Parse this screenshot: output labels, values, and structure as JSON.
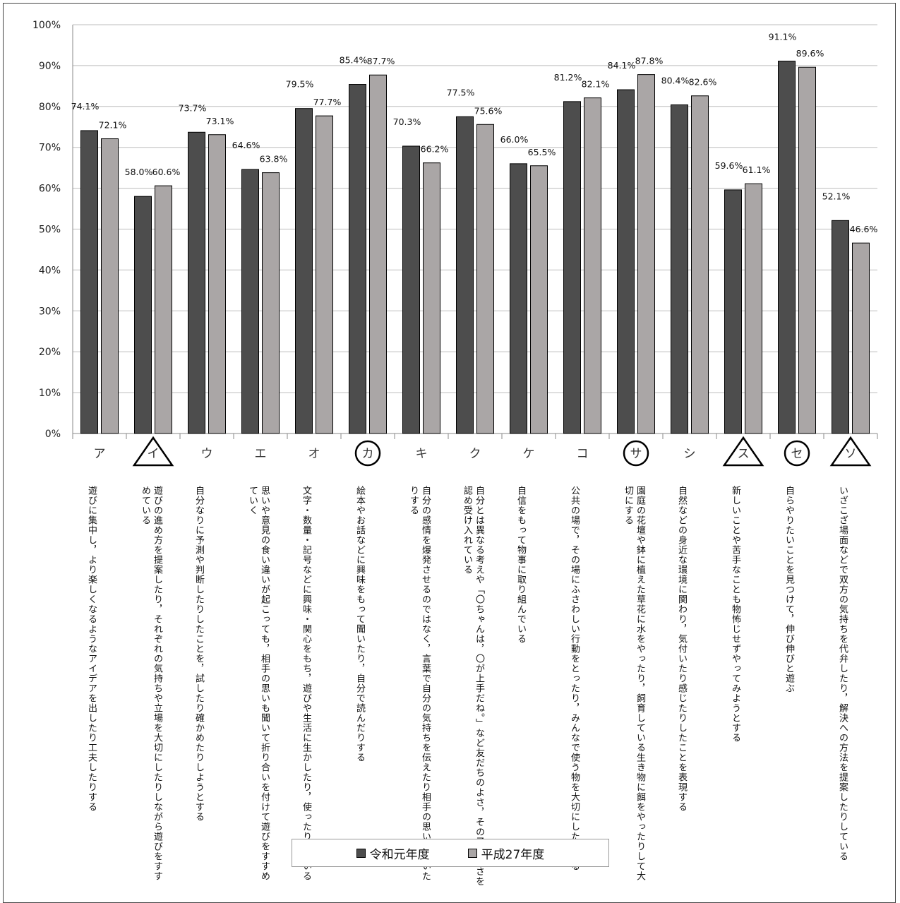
{
  "chart_data": {
    "type": "bar",
    "ylim": [
      0,
      100
    ],
    "yticks": [
      "0%",
      "10%",
      "20%",
      "30%",
      "40%",
      "50%",
      "60%",
      "70%",
      "80%",
      "90%",
      "100%"
    ],
    "categories": [
      "ア",
      "イ",
      "ウ",
      "エ",
      "オ",
      "カ",
      "キ",
      "ク",
      "ケ",
      "コ",
      "サ",
      "シ",
      "ス",
      "セ",
      "ソ"
    ],
    "category_marks": [
      "",
      "triangle",
      "",
      "",
      "",
      "circle",
      "",
      "",
      "",
      "",
      "circle",
      "",
      "triangle",
      "circle",
      "triangle"
    ],
    "descriptions": [
      "遊びに集中し，より楽しくなるようなアイデアを出したり工夫したりする",
      "遊びの進め方を提案したり，それぞれの気持ちや立場を大切にしたりしながら遊びをすすめている",
      "自分なりに予測や判断したりしたことを，試したり確かめたりしようとする",
      "思いや意見の食い違いが起こっても，相手の思いも聞いて折り合いを付けて遊びをすすめていく",
      "文字・数量・記号などに興味・関心をもち，遊びや生活に生かしたり，使ったりしている",
      "絵本やお話などに興味をもって聞いたり，自分で読んだりする",
      "自分の感情を爆発させるのではなく，言葉で自分の気持ちを伝えたり相手の思いを聞いたりする",
      "自分とは異なる考えや「〇ちゃんは，〇が上手だね。」など友だちのよさ，その子らしさを認め受け入れている",
      "自信をもって物事に取り組んでいる",
      "公共の場で，その場にふさわしい行動をとったり，みんなで使う物を大切にしたりする",
      "園庭の花壇や鉢に植えた草花に水をやったり，飼育している生き物に餌をやったりして大切にする",
      "自然などの身近な環境に関わり，気付いたり感じたりしたことを表現する",
      "新しいことや苦手なことも物怖じせずやってみようとする",
      "自らやりたいことを見つけて，伸び伸びと遊ぶ",
      "いざこざ場面などで双方の気持ちを代弁したり，解決への方法を提案したりしている"
    ],
    "series": [
      {
        "name": "令和元年度",
        "color": "#4d4d4d",
        "values": [
          74.1,
          58.0,
          73.7,
          64.6,
          79.5,
          85.4,
          70.3,
          77.5,
          66.0,
          81.2,
          84.1,
          80.4,
          59.6,
          91.1,
          52.1
        ],
        "labels": [
          "74.1%",
          "58.0%",
          "73.7%",
          "64.6%",
          "79.5%",
          "85.4%",
          "70.3%",
          "77.5%",
          "66.0%",
          "81.2%",
          "84.1%",
          "80.4%",
          "59.6%",
          "91.1%",
          "52.1%"
        ]
      },
      {
        "name": "平成27年度",
        "color": "#aaa6a6",
        "values": [
          72.1,
          60.6,
          73.1,
          63.8,
          77.7,
          87.7,
          66.2,
          75.6,
          65.5,
          82.1,
          87.8,
          82.6,
          61.1,
          89.6,
          46.6
        ],
        "labels": [
          "72.1%",
          "60.6%",
          "73.1%",
          "63.8%",
          "77.7%",
          "87.7%",
          "66.2%",
          "75.6%",
          "65.5%",
          "82.1%",
          "87.8%",
          "82.6%",
          "61.1%",
          "89.6%",
          "46.6%"
        ]
      }
    ],
    "grid": true,
    "legend_position": "bottom"
  }
}
